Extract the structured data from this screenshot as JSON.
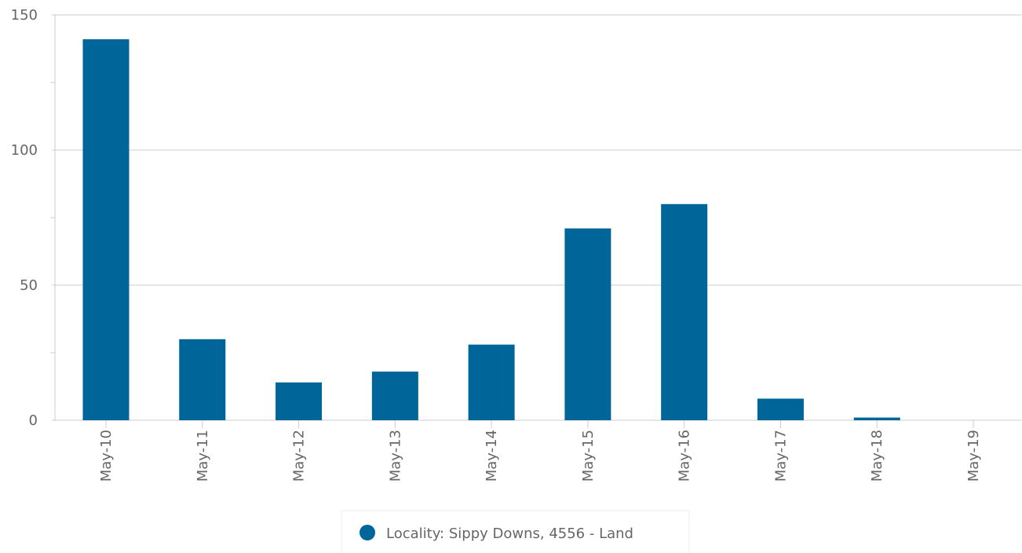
{
  "chart_data": {
    "type": "bar",
    "categories": [
      "May-10",
      "May-11",
      "May-12",
      "May-13",
      "May-14",
      "May-15",
      "May-16",
      "May-17",
      "May-18",
      "May-19"
    ],
    "series": [
      {
        "name": "Locality: Sippy Downs, 4556 - Land",
        "color": "#006699",
        "values": [
          141,
          30,
          14,
          18,
          28,
          71,
          80,
          8,
          1,
          0
        ]
      }
    ],
    "ylim": [
      0,
      150
    ],
    "yticks": [
      0,
      50,
      100,
      150
    ],
    "grid": true,
    "legend": "bottom"
  }
}
